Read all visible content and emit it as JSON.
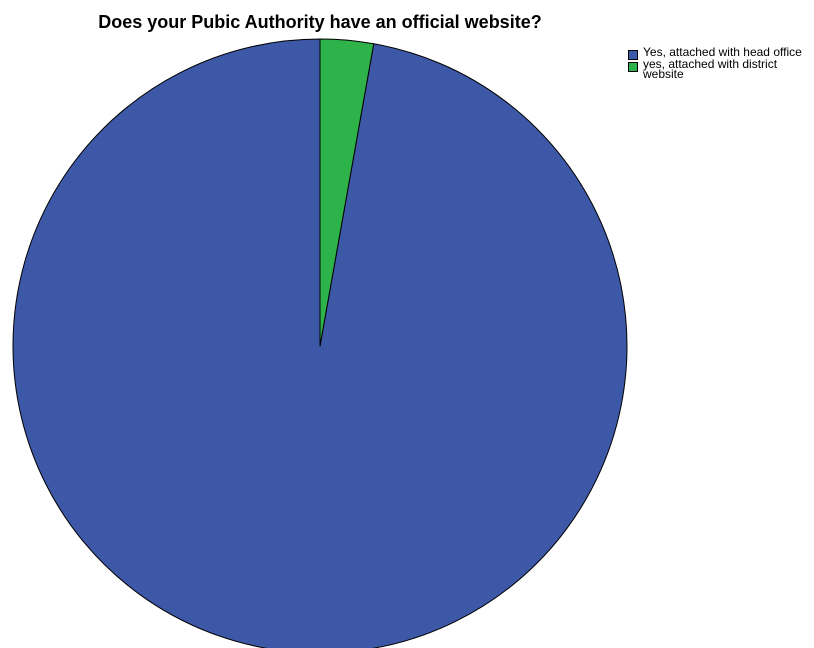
{
  "chart_data": {
    "type": "pie",
    "title": "Does your Pubic Authority have an official website?",
    "slices": [
      {
        "label": "Yes, attached with head office",
        "value": 97.2,
        "color": "#3e58a8"
      },
      {
        "label": "yes, attached with district website",
        "value": 2.8,
        "color": "#2db34a"
      }
    ],
    "legend_position": "top-right"
  }
}
